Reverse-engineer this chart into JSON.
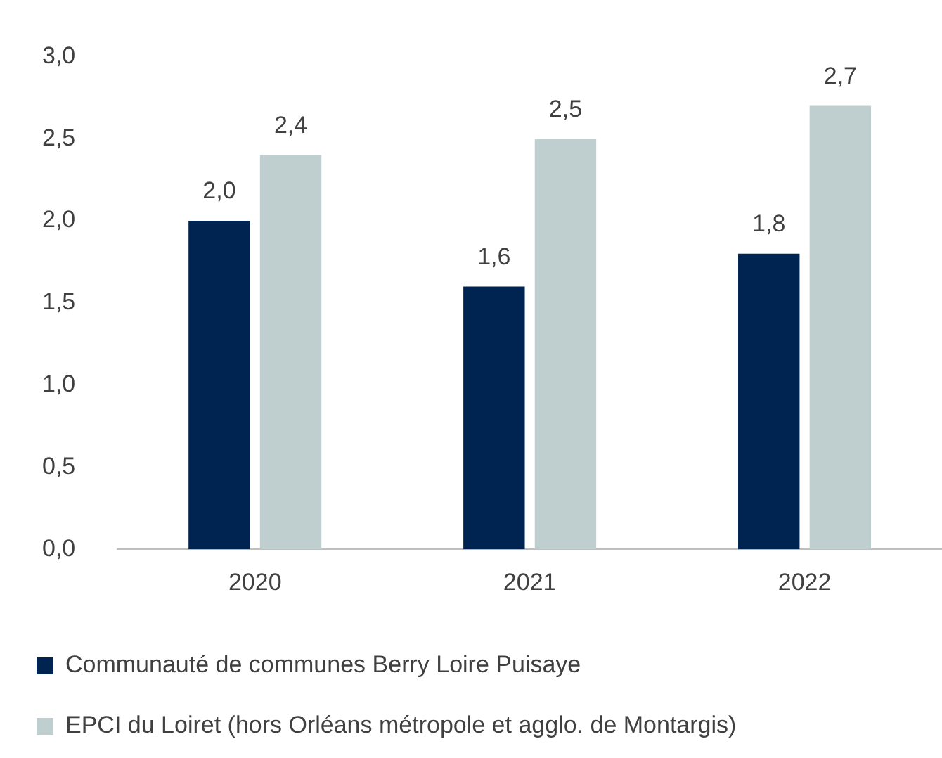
{
  "chart_data": {
    "type": "bar",
    "categories": [
      "2020",
      "2021",
      "2022"
    ],
    "series": [
      {
        "name": "Communauté de communes Berry Loire Puisaye",
        "color": "#002452",
        "values": [
          2.0,
          1.6,
          1.8
        ],
        "value_labels": [
          "2,0",
          "1,6",
          "1,8"
        ]
      },
      {
        "name": "EPCI du Loiret (hors Orléans métropole et agglo. de Montargis)",
        "color": "#bfcecf",
        "values": [
          2.4,
          2.5,
          2.7
        ],
        "value_labels": [
          "2,4",
          "2,5",
          "2,7"
        ]
      }
    ],
    "ylim": [
      0,
      3
    ],
    "yticks": [
      {
        "value": 0,
        "label": "0,0"
      },
      {
        "value": 0.5,
        "label": "0,5"
      },
      {
        "value": 1,
        "label": "1,0"
      },
      {
        "value": 1.5,
        "label": "1,5"
      },
      {
        "value": 2,
        "label": "2,0"
      },
      {
        "value": 2.5,
        "label": "2,5"
      },
      {
        "value": 3,
        "label": "3,0"
      }
    ],
    "grid": false,
    "legend": "bottom"
  }
}
